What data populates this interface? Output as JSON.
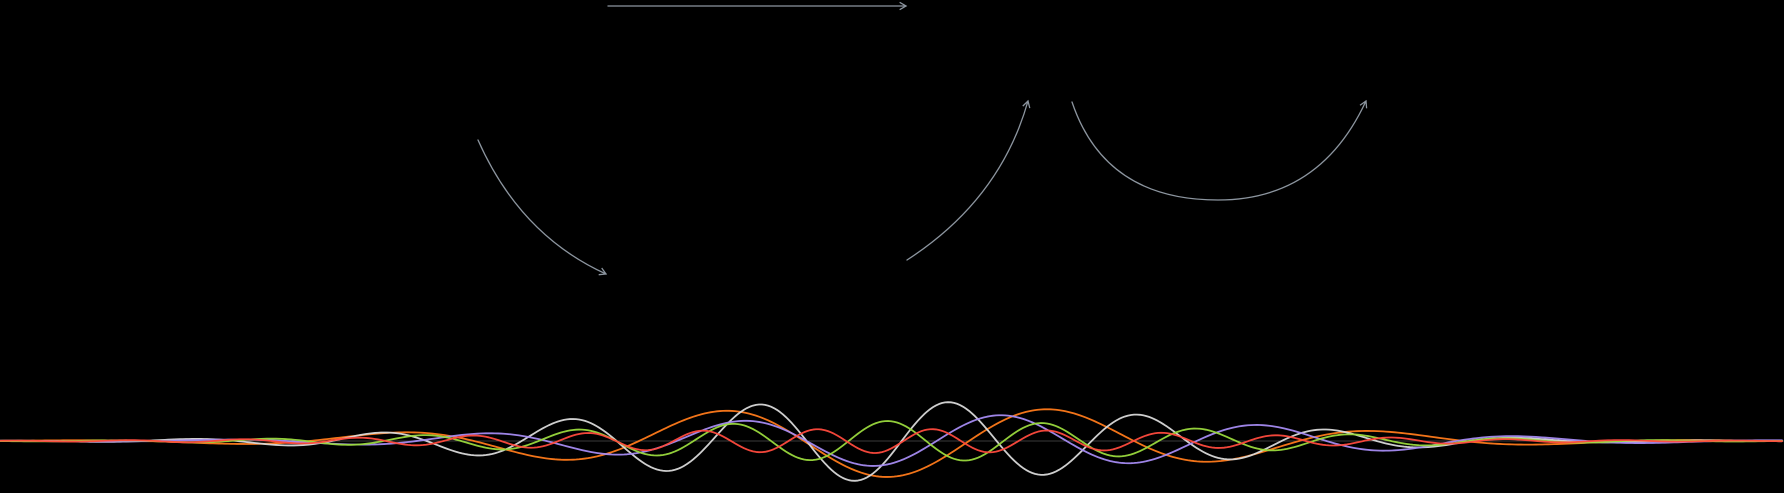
{
  "colors": {
    "background": "#000000",
    "arrow": "#8c959f"
  },
  "arrows": [
    {
      "name": "top-straight-arrow",
      "shape": "straight"
    },
    {
      "name": "left-curved-arrow",
      "shape": "curve-down"
    },
    {
      "name": "middle-curved-arrow",
      "shape": "curve-up"
    },
    {
      "name": "right-arc-arrow",
      "shape": "arc"
    }
  ],
  "waves": [
    {
      "name": "orange-wave",
      "color": "#ff7a1a"
    },
    {
      "name": "white-wave",
      "color": "#d9d9d9"
    },
    {
      "name": "purple-wave",
      "color": "#a58bf2"
    },
    {
      "name": "green-wave",
      "color": "#9ad93d"
    },
    {
      "name": "red-wave",
      "color": "#ff4a3d"
    }
  ]
}
